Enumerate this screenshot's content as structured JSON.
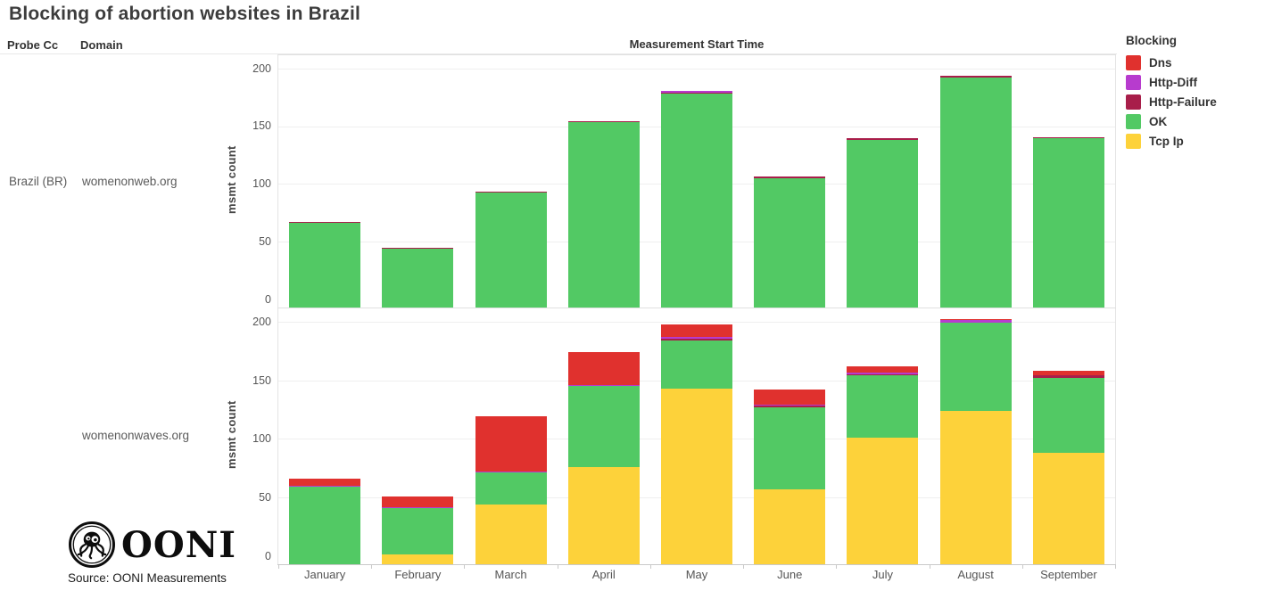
{
  "title": "Blocking of abortion websites in Brazil",
  "table_headers": {
    "probe_cc": "Probe Cc",
    "domain": "Domain"
  },
  "axis_title": "Measurement Start Time",
  "probe_label": "Brazil (BR)",
  "brand": {
    "name": "OONI"
  },
  "source_text": "Source: OONI Measurements",
  "legend": {
    "title": "Blocking",
    "items": [
      {
        "label": "Dns",
        "color": "#e0312e"
      },
      {
        "label": "Http-Diff",
        "color": "#b73bce"
      },
      {
        "label": "Http-Failure",
        "color": "#a81e4a"
      },
      {
        "label": "OK",
        "color": "#52c964"
      },
      {
        "label": "Tcp Ip",
        "color": "#fdd23a"
      }
    ]
  },
  "chart_data": {
    "type": "bar",
    "stacked": true,
    "categories": [
      "January",
      "February",
      "March",
      "April",
      "May",
      "June",
      "July",
      "August",
      "September"
    ],
    "xlabel": "Measurement Start Time",
    "ylabel": "msmt count",
    "ylim": [
      0,
      200
    ],
    "yticks": [
      0,
      50,
      100,
      150,
      200
    ],
    "grid": true,
    "legend_position": "top-right",
    "series_colors": {
      "Tcp Ip": "#fdd23a",
      "OK": "#52c964",
      "Http-Failure": "#a81e4a",
      "Http-Diff": "#b73bce",
      "Dns": "#e0312e"
    },
    "stack_order_bottom_to_top": [
      "Tcp Ip",
      "OK",
      "Http-Failure",
      "Http-Diff",
      "Dns"
    ],
    "facets": [
      {
        "probe_cc": "Brazil (BR)",
        "domain": "womenonweb.org",
        "series": [
          {
            "name": "Tcp Ip",
            "values": [
              0,
              0,
              0,
              0,
              0,
              0,
              0,
              0,
              0
            ]
          },
          {
            "name": "OK",
            "values": [
              67,
              45,
              93,
              154,
              179,
              106,
              139,
              193,
              140
            ]
          },
          {
            "name": "Http-Failure",
            "values": [
              1,
              1,
              1,
              1,
              1,
              1,
              1,
              1,
              1
            ]
          },
          {
            "name": "Http-Diff",
            "values": [
              0,
              0,
              0,
              0,
              1,
              0,
              0,
              0,
              0
            ]
          },
          {
            "name": "Dns",
            "values": [
              0,
              0,
              0,
              0,
              0,
              0,
              0,
              0,
              0
            ]
          }
        ],
        "totals": [
          68,
          46,
          94,
          155,
          181,
          107,
          140,
          194,
          141
        ]
      },
      {
        "probe_cc": "Brazil (BR)",
        "domain": "womenonwaves.org",
        "series": [
          {
            "name": "Tcp Ip",
            "values": [
              0,
              2,
              45,
              77,
              144,
              58,
              102,
              125,
              89
            ]
          },
          {
            "name": "OK",
            "values": [
              60,
              40,
              27,
              69,
              41,
              70,
              53,
              75,
              64
            ]
          },
          {
            "name": "Http-Failure",
            "values": [
              0,
              0,
              0,
              0,
              1,
              1,
              1,
              0,
              2
            ]
          },
          {
            "name": "Http-Diff",
            "values": [
              1,
              1,
              1,
              1,
              2,
              1,
              1,
              2,
              0
            ]
          },
          {
            "name": "Dns",
            "values": [
              6,
              9,
              47,
              28,
              10,
              13,
              6,
              1,
              4
            ]
          }
        ],
        "totals": [
          67,
          52,
          120,
          175,
          198,
          143,
          163,
          203,
          159
        ]
      }
    ]
  }
}
